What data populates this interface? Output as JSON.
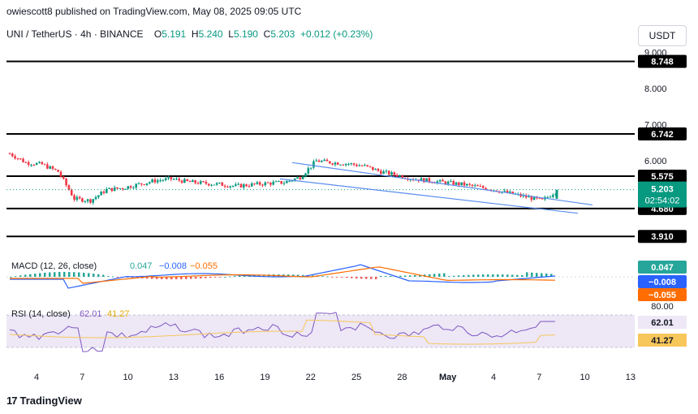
{
  "publisher": "owiescott8 published on TradingView.com, May 08, 2025 09:05 UTC",
  "symbol": {
    "name": "UNI / TetherUS · 4h · BINANCE",
    "open_label": "O",
    "open": "5.191",
    "high_label": "H",
    "high": "5.240",
    "low_label": "L",
    "low": "5.190",
    "close_label": "C",
    "close": "5.203",
    "change": "+0.012 (+0.23%)"
  },
  "currency": "USDT",
  "price_axis_ticks": [
    "9.000",
    "8.000",
    "7.000",
    "6.000"
  ],
  "levels": [
    {
      "price": 8.748,
      "label": "8.748"
    },
    {
      "price": 6.742,
      "label": "6.742"
    },
    {
      "price": 5.575,
      "label": "5.575"
    },
    {
      "price": 4.68,
      "label": "4.680"
    },
    {
      "price": 3.91,
      "label": "3.910"
    }
  ],
  "last_price": {
    "value": "5.203",
    "countdown": "02:54:02",
    "color": "#089981"
  },
  "macd": {
    "title": "MACD (12, 26, close)",
    "v1": "0.047",
    "v2": "−0.008",
    "v3": "−0.055",
    "colors": {
      "macd": "#2962ff",
      "signal": "#ff6d00",
      "hist_up": "#26a69a",
      "hist_down": "#ef5350"
    }
  },
  "rsi": {
    "title": "RSI (14, close)",
    "v1": "62.01",
    "v2": "41.27",
    "upper_band": "80.00",
    "colors": {
      "rsi": "#7e57c2",
      "ma": "#f7c75b",
      "band_fill": "#ede7f6"
    }
  },
  "time_axis": [
    "4",
    "7",
    "10",
    "13",
    "16",
    "19",
    "22",
    "25",
    "28",
    "May",
    "4",
    "7",
    "10",
    "13"
  ],
  "brand": "TradingView",
  "chart_data": {
    "type": "line",
    "title": "UNI / TetherUS · 4h · BINANCE",
    "xlabel": "",
    "ylabel": "",
    "ylim": [
      3.6,
      9.1
    ],
    "x": [
      "4",
      "5",
      "6",
      "7",
      "8",
      "9",
      "10",
      "11",
      "12",
      "13",
      "14",
      "15",
      "16",
      "17",
      "18",
      "19",
      "20",
      "21",
      "22",
      "23",
      "24",
      "25",
      "26",
      "27",
      "28",
      "29",
      "30",
      "May",
      "2",
      "3",
      "4",
      "5",
      "6",
      "7",
      "8"
    ],
    "series": [
      {
        "values": [
          6.2,
          5.95,
          5.9,
          5.7,
          4.95,
          4.9,
          5.2,
          5.25,
          5.35,
          5.45,
          5.5,
          5.42,
          5.38,
          5.35,
          5.3,
          5.34,
          5.38,
          5.4,
          5.55,
          6.0,
          5.95,
          5.92,
          5.85,
          5.7,
          5.6,
          5.5,
          5.45,
          5.4,
          5.35,
          5.28,
          5.2,
          5.1,
          5.0,
          4.9,
          5.2
        ]
      }
    ],
    "channel": [
      {
        "x1": "21",
        "y1": 5.95,
        "x2": "10",
        "y2": 4.78
      },
      {
        "x1": "20",
        "y1": 5.5,
        "x2": "10",
        "y2": 4.55
      }
    ],
    "grid": false
  }
}
